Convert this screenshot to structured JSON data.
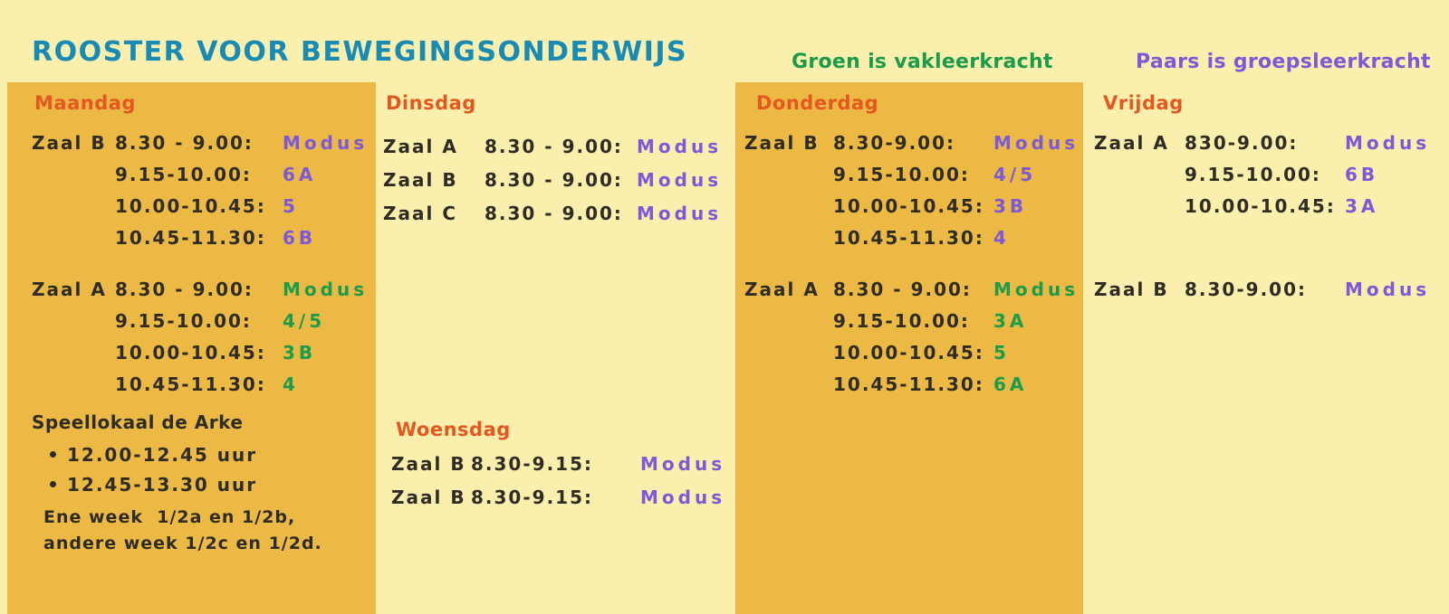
{
  "title": "ROOSTER VOOR BEWEGINGSONDERWIJS",
  "legend": {
    "green_label": "Groen is vakleerkracht",
    "purple_label": "Paars is groepsleerkracht"
  },
  "maandag": {
    "header": "Maandag",
    "zaal_b": [
      {
        "room": "Zaal B",
        "time": "8.30 - 9.00:",
        "value": "Modus"
      },
      {
        "room": "",
        "time": "9.15-10.00:",
        "value": "6A"
      },
      {
        "room": "",
        "time": "10.00-10.45:",
        "value": "5"
      },
      {
        "room": "",
        "time": "10.45-11.30:",
        "value": "6B"
      }
    ],
    "zaal_a": [
      {
        "room": "Zaal A",
        "time": "8.30 - 9.00:",
        "value": "Modus"
      },
      {
        "room": "",
        "time": "9.15-10.00:",
        "value": "4/5"
      },
      {
        "room": "",
        "time": "10.00-10.45:",
        "value": "3B"
      },
      {
        "room": "",
        "time": "10.45-11.30:",
        "value": "4"
      }
    ],
    "speellokaal": {
      "title": "Speellokaal de Arke",
      "bullets": [
        "12.00-12.45 uur",
        "12.45-13.30 uur"
      ],
      "note_line1": "Ene week  1/2a en 1/2b,",
      "note_line2": "andere week 1/2c en 1/2d."
    }
  },
  "dinsdag": {
    "header": "Dinsdag",
    "rows": [
      {
        "room": "Zaal A",
        "time": "8.30 - 9.00:",
        "value": "Modus"
      },
      {
        "room": "Zaal B",
        "time": "8.30 - 9.00:",
        "value": "Modus"
      },
      {
        "room": "Zaal C",
        "time": "8.30 - 9.00:",
        "value": "Modus"
      }
    ]
  },
  "woensdag": {
    "header": "Woensdag",
    "rows": [
      {
        "room": "Zaal B",
        "time": "8.30-9.15:",
        "value": "Modus"
      },
      {
        "room": "Zaal B",
        "time": "8.30-9.15:",
        "value": "Modus"
      }
    ]
  },
  "donderdag": {
    "header": "Donderdag",
    "zaal_b": [
      {
        "room": "Zaal B",
        "time": "8.30-9.00:",
        "value": "Modus"
      },
      {
        "room": "",
        "time": "9.15-10.00:",
        "value": "4/5"
      },
      {
        "room": "",
        "time": "10.00-10.45:",
        "value": "3B"
      },
      {
        "room": "",
        "time": "10.45-11.30:",
        "value": "4"
      }
    ],
    "zaal_a": [
      {
        "room": "Zaal A",
        "time": "8.30 - 9.00:",
        "value": "Modus"
      },
      {
        "room": "",
        "time": "9.15-10.00:",
        "value": "3A"
      },
      {
        "room": "",
        "time": "10.00-10.45:",
        "value": "5"
      },
      {
        "room": "",
        "time": "10.45-11.30:",
        "value": "6A"
      }
    ]
  },
  "vrijdag": {
    "header": "Vrijdag",
    "zaal_a": [
      {
        "room": "Zaal A",
        "time": "830-9.00:",
        "value": "Modus"
      },
      {
        "room": "",
        "time": "9.15-10.00:",
        "value": "6B"
      },
      {
        "room": "",
        "time": "10.00-10.45:",
        "value": "3A"
      }
    ],
    "zaal_b": [
      {
        "room": "Zaal B",
        "time": "8.30-9.00:",
        "value": "Modus"
      }
    ]
  },
  "colors": {
    "page_background": "#FBEFAD",
    "column_background": "#ECB944",
    "title_teal": "#178BB4",
    "day_header_orange": "#E4571F",
    "vakleerkracht_green": "#1A9C4B",
    "groepsleerkracht_purple": "#7C59D8",
    "text_dark": "#2E2C25"
  }
}
